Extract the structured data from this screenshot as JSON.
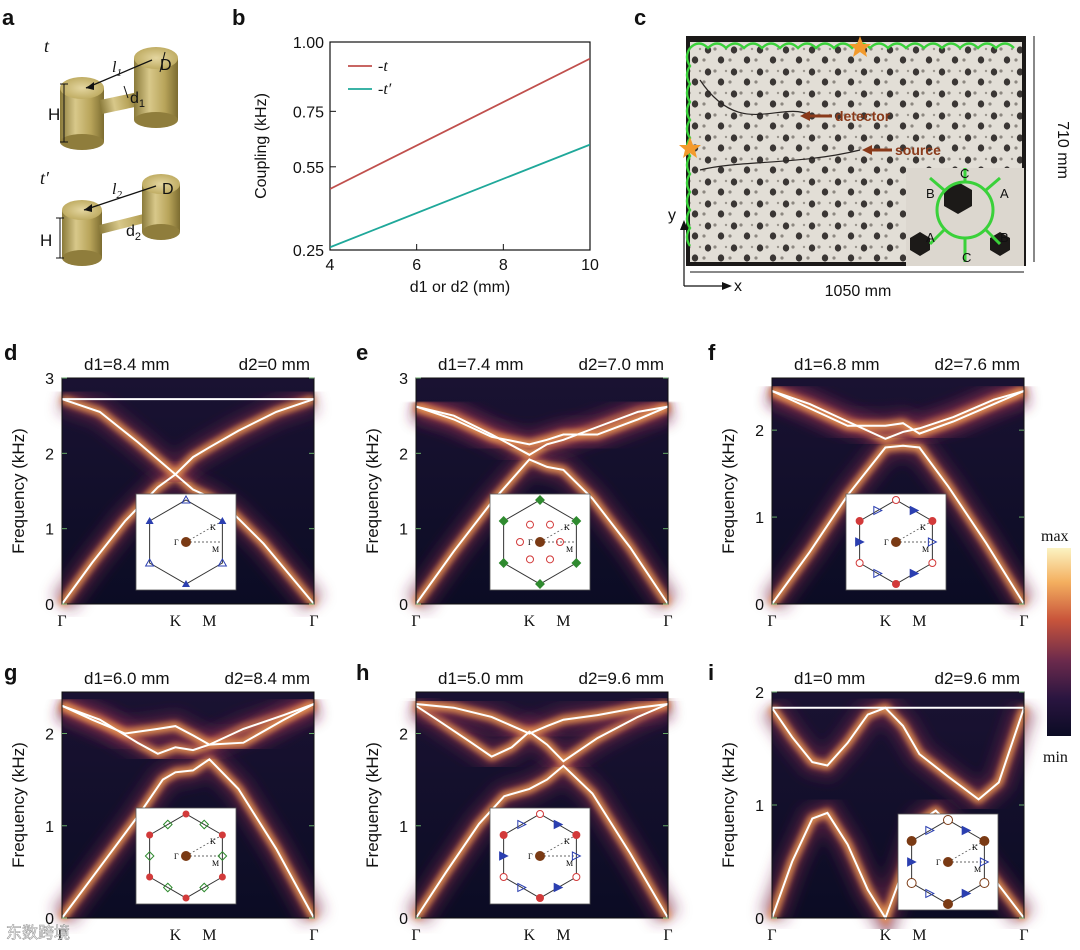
{
  "panels": {
    "a": {
      "letter": "a",
      "t_label": "t",
      "tprime_label": "t′",
      "top": {
        "l": "l1",
        "D": "D",
        "d": "d1",
        "H": "H"
      },
      "bottom": {
        "l": "l2",
        "D": "D",
        "d": "d2",
        "H": "H"
      }
    },
    "b": {
      "letter": "b"
    },
    "c": {
      "letter": "c",
      "detector": "detector",
      "source": "source",
      "width_label": "1050 mm",
      "height_label": "710 mm",
      "axis_x": "x",
      "axis_y": "y",
      "sublattice": [
        "C",
        "B",
        "A",
        "A",
        "B",
        "C"
      ]
    }
  },
  "colorbar": {
    "max": "max",
    "min": "min"
  },
  "watermark": "东数跨境",
  "chart_data": [
    {
      "id": "b",
      "type": "line",
      "xlabel": "d1 or d2 (mm)",
      "ylabel": "Coupling (kHz)",
      "xlim": [
        4,
        10
      ],
      "ylim": [
        0.25,
        1.0
      ],
      "xticks": [
        "4",
        "6",
        "8",
        "10"
      ],
      "yticks": [
        "0.25",
        "0.55",
        "0.75",
        "1.00"
      ],
      "series": [
        {
          "name": "-t",
          "color": "#c0504d",
          "x": [
            4,
            10
          ],
          "y": [
            0.47,
            0.94
          ]
        },
        {
          "name": "-t′",
          "color": "#1fa89a",
          "x": [
            4,
            10
          ],
          "y": [
            0.26,
            0.63
          ]
        }
      ]
    },
    {
      "id": "d",
      "type": "heatmap",
      "title_left": "d1=8.4 mm",
      "title_right": "d2=0 mm",
      "ylabel": "Frequency (kHz)",
      "ylim": [
        0,
        3
      ],
      "yticks": [
        "0",
        "1",
        "2",
        "3"
      ],
      "xticks": [
        "Γ",
        "K",
        "M",
        "Γ"
      ]
    },
    {
      "id": "e",
      "type": "heatmap",
      "title_left": "d1=7.4 mm",
      "title_right": "d2=7.0 mm",
      "ylabel": "Frequency (kHz)",
      "ylim": [
        0,
        3
      ],
      "yticks": [
        "0",
        "1",
        "2",
        "3"
      ],
      "xticks": [
        "Γ",
        "K",
        "M",
        "Γ"
      ]
    },
    {
      "id": "f",
      "type": "heatmap",
      "title_left": "d1=6.8 mm",
      "title_right": "d2=7.6 mm",
      "ylabel": "Frequency (kHz)",
      "ylim": [
        0,
        2.6
      ],
      "yticks": [
        "0",
        "1",
        "2"
      ],
      "xticks": [
        "Γ",
        "K",
        "M",
        "Γ"
      ]
    },
    {
      "id": "g",
      "type": "heatmap",
      "title_left": "d1=6.0 mm",
      "title_right": "d2=8.4 mm",
      "ylabel": "Frequency (kHz)",
      "ylim": [
        0,
        2.45
      ],
      "yticks": [
        "0",
        "1",
        "2"
      ],
      "xticks": [
        "Γ",
        "K",
        "M",
        "Γ"
      ]
    },
    {
      "id": "h",
      "type": "heatmap",
      "title_left": "d1=5.0 mm",
      "title_right": "d2=9.6 mm",
      "ylabel": "Frequency (kHz)",
      "ylim": [
        0,
        2.45
      ],
      "yticks": [
        "0",
        "1",
        "2"
      ],
      "xticks": [
        "Γ",
        "K",
        "M",
        "Γ"
      ]
    },
    {
      "id": "i",
      "type": "heatmap",
      "title_left": "d1=0 mm",
      "title_right": "d2=9.6 mm",
      "ylabel": "Frequency (kHz)",
      "ylim": [
        0,
        2
      ],
      "yticks": [
        "0",
        "1",
        "2"
      ],
      "xticks": [
        "Γ",
        "K",
        "M",
        "Γ"
      ]
    }
  ]
}
